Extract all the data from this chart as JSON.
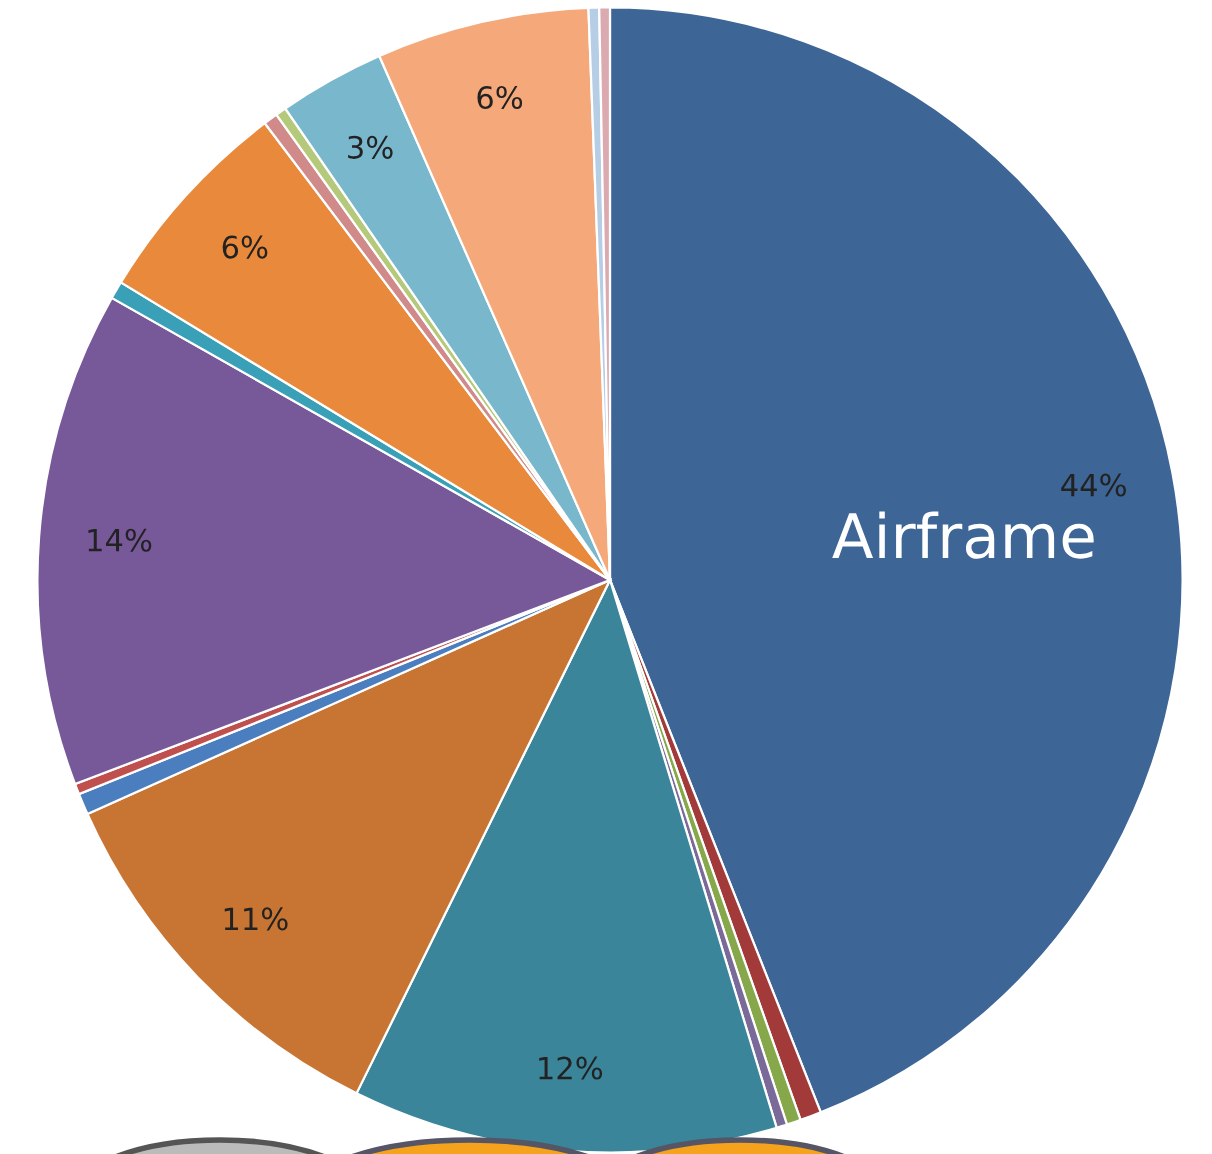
{
  "chart_data": {
    "type": "pie",
    "categories": [
      "Airframe",
      null,
      null,
      null,
      null,
      null,
      null,
      null,
      null,
      null,
      null,
      null,
      null,
      null,
      null,
      null,
      null
    ],
    "values": [
      44,
      0.6,
      0.4,
      0.3,
      12,
      11,
      0.6,
      0.3,
      14,
      0.5,
      6,
      0.4,
      0.3,
      3,
      6,
      0.3,
      0.3
    ],
    "colors": [
      "#3d6596",
      "#a33a3a",
      "#86a84a",
      "#7a6a9a",
      "#3a8599",
      "#c87533",
      "#4a7ebf",
      "#c0504d",
      "#77599a",
      "#3aa0b8",
      "#e8893c",
      "#d08a8a",
      "#b5c97a",
      "#79b7cc",
      "#f5a97a",
      "#b6cde6",
      "#dbaab0"
    ],
    "value_labels": [
      "44%",
      null,
      null,
      null,
      "12%",
      "11%",
      null,
      null,
      "14%",
      null,
      "6%",
      null,
      null,
      "3%",
      "6%",
      null,
      null
    ]
  }
}
